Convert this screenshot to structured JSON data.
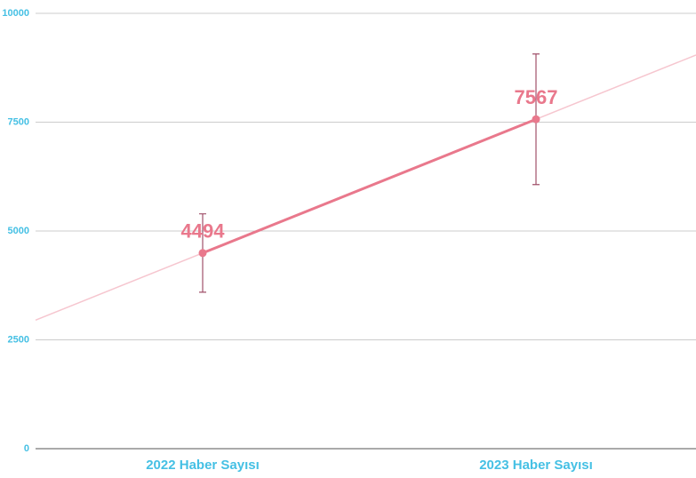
{
  "chart_data": {
    "type": "line",
    "categories": [
      "2022 Haber Sayısı",
      "2023 Haber Sayısı"
    ],
    "values": [
      4494,
      7567
    ],
    "errors": [
      900,
      1500
    ],
    "color": "#e9788c",
    "ylim": [
      0,
      10000
    ],
    "yticks": [
      0,
      2500,
      5000,
      7500,
      10000
    ],
    "grid": true
  }
}
